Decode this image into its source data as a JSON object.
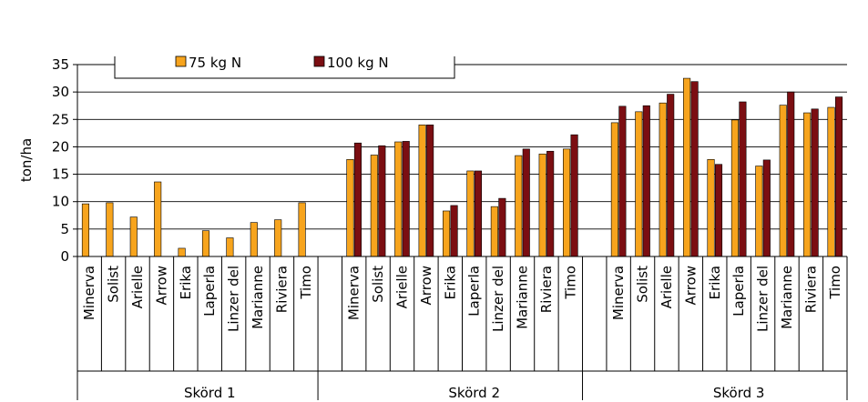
{
  "chart_data": {
    "type": "bar",
    "title": "",
    "xlabel": "",
    "ylabel": "ton/ha",
    "ylim": [
      0,
      35
    ],
    "yticks": [
      0,
      5,
      10,
      15,
      20,
      25,
      30,
      35
    ],
    "grid": true,
    "legend_position": "top",
    "colors": {
      "75 kg N": "#F7A41D",
      "100 kg N": "#7B0E12"
    },
    "groups": [
      {
        "name": "Skörd 1",
        "categories": [
          "Minerva",
          "Solist",
          "Arielle",
          "Arrow",
          "Erika",
          "Laperla",
          "Linzer del",
          "Marianne",
          "Riviera",
          "Timo"
        ],
        "series": [
          {
            "name": "75 kg N",
            "values": [
              9.6,
              9.8,
              7.2,
              13.6,
              1.5,
              4.7,
              3.4,
              6.2,
              6.7,
              9.8
            ]
          },
          {
            "name": "100 kg N",
            "values": [
              null,
              null,
              null,
              null,
              null,
              null,
              null,
              null,
              null,
              null
            ]
          }
        ]
      },
      {
        "name": "Skörd 2",
        "categories": [
          "Minerva",
          "Solist",
          "Arielle",
          "Arrow",
          "Erika",
          "Laperla",
          "Linzer del",
          "Marianne",
          "Riviera",
          "Timo"
        ],
        "series": [
          {
            "name": "75 kg N",
            "values": [
              17.7,
              18.5,
              20.9,
              24.0,
              8.3,
              15.6,
              9.1,
              18.4,
              18.7,
              19.6
            ]
          },
          {
            "name": "100 kg N",
            "values": [
              20.7,
              20.2,
              21.0,
              24.0,
              9.3,
              15.6,
              10.6,
              19.6,
              19.2,
              22.2
            ]
          }
        ]
      },
      {
        "name": "Skörd 3",
        "categories": [
          "Minerva",
          "Solist",
          "Arielle",
          "Arrow",
          "Erika",
          "Laperla",
          "Linzer del",
          "Marianne",
          "Riviera",
          "Timo"
        ],
        "series": [
          {
            "name": "75 kg N",
            "values": [
              24.4,
              26.4,
              28.0,
              32.5,
              17.7,
              24.9,
              16.5,
              27.6,
              26.2,
              27.2
            ]
          },
          {
            "name": "100 kg N",
            "values": [
              27.4,
              27.5,
              29.6,
              31.9,
              16.8,
              28.2,
              17.6,
              30.0,
              26.9,
              29.1
            ]
          }
        ]
      }
    ]
  }
}
